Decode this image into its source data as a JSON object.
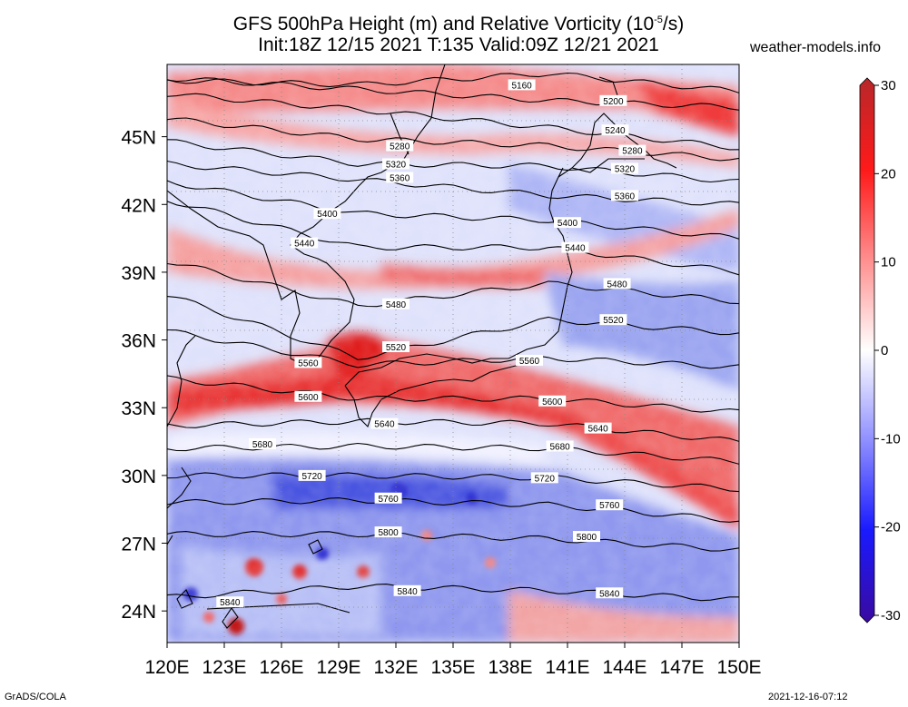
{
  "header": {
    "title_prefix": "GFS 500hPa Height (m) and Relative Vorticity (10",
    "title_exp": "-5",
    "title_suffix": "/s)",
    "subtitle": "Init:18Z 12/15 2021 T:135 Valid:09Z 12/21 2021",
    "site": "weather-models.info"
  },
  "footer": {
    "left": "GrADS/COLA",
    "right": "2021-12-16-07:12"
  },
  "map": {
    "lat_labels": [
      "45N",
      "42N",
      "39N",
      "36N",
      "33N",
      "30N",
      "27N",
      "24N"
    ],
    "lat_values": [
      45,
      42,
      39,
      36,
      33,
      30,
      27,
      24
    ],
    "lon_labels": [
      "120E",
      "123E",
      "126E",
      "129E",
      "132E",
      "135E",
      "138E",
      "141E",
      "144E",
      "147E",
      "150E"
    ],
    "lon_values": [
      120,
      123,
      126,
      129,
      132,
      135,
      138,
      141,
      144,
      147,
      150
    ]
  },
  "colorbar": {
    "labels": [
      "30",
      "20",
      "10",
      "0",
      "-10",
      "-20",
      "-30"
    ],
    "values": [
      30,
      20,
      10,
      0,
      -10,
      -20,
      -30
    ]
  },
  "contours": [
    {
      "value": "5160",
      "lat": [
        47.5,
        47.3,
        47.8,
        47.0
      ],
      "labels": [
        [
          138.6,
          47.3
        ]
      ]
    },
    {
      "value": "5200",
      "lat": [
        47.6,
        47.1,
        46.6,
        46.3
      ],
      "labels": [
        [
          143.4,
          46.6
        ]
      ]
    },
    {
      "value": "5240",
      "lat": [
        46.9,
        46.2,
        45.4,
        44.5
      ],
      "labels": [
        [
          143.5,
          45.3
        ]
      ]
    },
    {
      "value": "5280",
      "lat": [
        45.8,
        44.9,
        44.6,
        44.0
      ],
      "labels": [
        [
          132.2,
          44.6
        ],
        [
          144.4,
          44.4
        ]
      ]
    },
    {
      "value": "5320",
      "lat": [
        44.8,
        43.8,
        43.7,
        43.0
      ],
      "labels": [
        [
          132.0,
          43.8
        ],
        [
          144.0,
          43.6
        ]
      ]
    },
    {
      "value": "5360",
      "lat": [
        43.8,
        43.1,
        42.4,
        42.0
      ],
      "labels": [
        [
          132.2,
          43.2
        ],
        [
          144.0,
          42.4
        ]
      ]
    },
    {
      "value": "5400",
      "lat": [
        43.0,
        41.6,
        41.3,
        40.5
      ],
      "labels": [
        [
          128.4,
          41.6
        ],
        [
          141.0,
          41.2
        ]
      ]
    },
    {
      "value": "5440",
      "lat": [
        42.2,
        40.1,
        40.1,
        39.0
      ],
      "labels": [
        [
          127.2,
          40.3
        ],
        [
          141.4,
          40.1
        ]
      ]
    },
    {
      "value": "5480",
      "lat": [
        39.5,
        37.5,
        38.5,
        37.7
      ],
      "labels": [
        [
          132.0,
          37.6
        ],
        [
          143.6,
          38.5
        ]
      ]
    },
    {
      "value": "5520",
      "lat": [
        38.0,
        35.2,
        36.9,
        36.3
      ],
      "labels": [
        [
          132.0,
          35.7
        ],
        [
          143.4,
          36.9
        ]
      ]
    },
    {
      "value": "5560",
      "lat": [
        36.4,
        34.9,
        35.2,
        34.8
      ],
      "labels": [
        [
          127.4,
          35.0
        ],
        [
          139.0,
          35.1
        ]
      ]
    },
    {
      "value": "5600",
      "lat": [
        34.3,
        33.4,
        33.4,
        32.8
      ],
      "labels": [
        [
          127.4,
          33.5
        ],
        [
          140.2,
          33.3
        ]
      ]
    },
    {
      "value": "5640",
      "lat": [
        32.2,
        32.4,
        32.3,
        31.5
      ],
      "labels": [
        [
          131.4,
          32.3
        ],
        [
          142.6,
          32.1
        ]
      ]
    },
    {
      "value": "5680",
      "lat": [
        31.2,
        31.3,
        31.2,
        30.6
      ],
      "labels": [
        [
          125.0,
          31.4
        ],
        [
          140.6,
          31.3
        ]
      ]
    },
    {
      "value": "5720",
      "lat": [
        30.0,
        30.0,
        29.9,
        29.4
      ],
      "labels": [
        [
          127.6,
          30.0
        ],
        [
          139.8,
          29.9
        ]
      ]
    },
    {
      "value": "5760",
      "lat": [
        28.8,
        28.9,
        28.7,
        28.0
      ],
      "labels": [
        [
          131.6,
          29.0
        ],
        [
          143.2,
          28.7
        ]
      ]
    },
    {
      "value": "5800",
      "lat": [
        27.4,
        27.4,
        27.2,
        26.7
      ],
      "labels": [
        [
          131.6,
          27.5
        ],
        [
          142.0,
          27.3
        ]
      ]
    },
    {
      "value": "5840",
      "lat": [
        24.6,
        25.1,
        24.9,
        24.5
      ],
      "labels": [
        [
          123.3,
          24.4
        ],
        [
          132.6,
          24.9
        ],
        [
          143.2,
          24.8
        ]
      ]
    }
  ]
}
